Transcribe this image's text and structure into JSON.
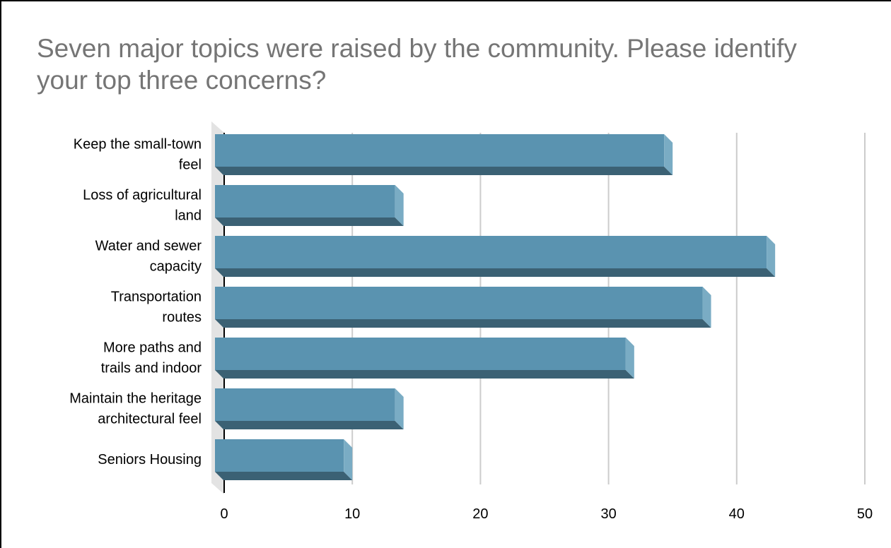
{
  "chart_data": {
    "type": "bar",
    "orientation": "horizontal",
    "title": "Seven major topics were raised by the community. Please identify your top three concerns?",
    "categories": [
      [
        "Keep the small-town",
        "feel"
      ],
      [
        "Loss of agricultural",
        "land"
      ],
      [
        "Water and sewer",
        "capacity"
      ],
      [
        "Transportation",
        "routes"
      ],
      [
        "More paths and",
        "trails and indoor"
      ],
      [
        "Maintain the heritage",
        "architectural feel"
      ],
      [
        "Seniors Housing"
      ]
    ],
    "values": [
      35,
      14,
      43,
      38,
      32,
      14,
      10
    ],
    "xlim": [
      0,
      50
    ],
    "xticks": [
      0,
      10,
      20,
      30,
      40,
      50
    ],
    "grid": true,
    "bar_style": "3d",
    "colors": {
      "bar_front": "#5a93b0",
      "bar_bottom": "#3b6174",
      "bar_end": "#7aacc4",
      "grid": "#cccccc",
      "floor": "#e3e3e3"
    }
  }
}
